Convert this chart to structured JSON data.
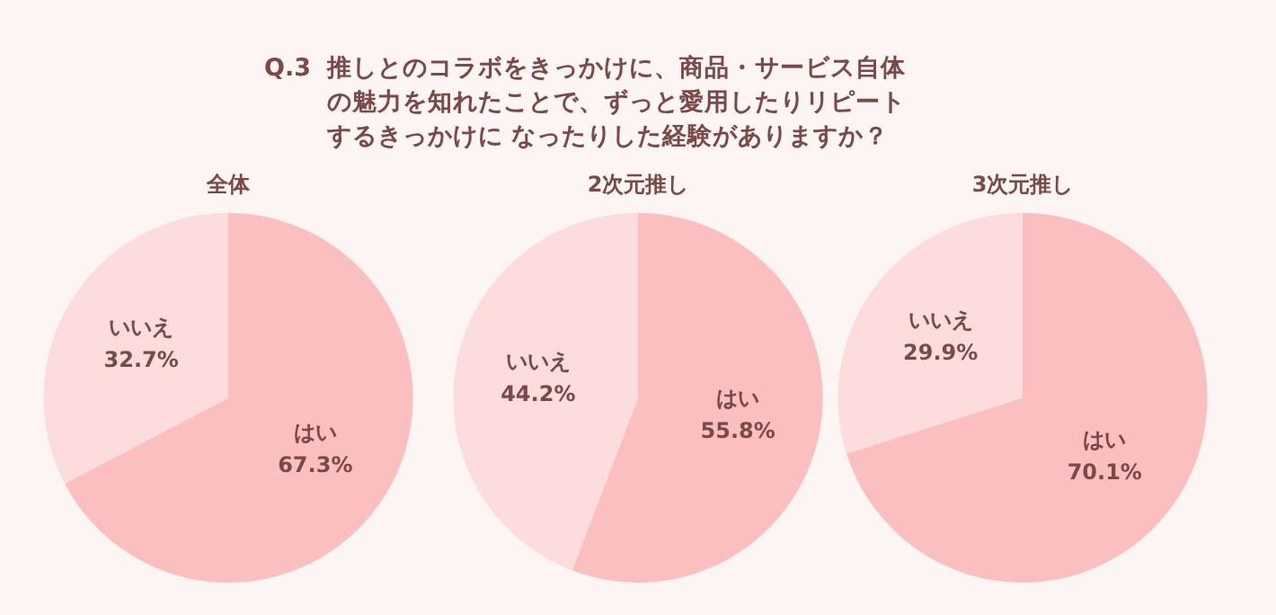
{
  "chart_data": [
    {
      "type": "pie",
      "title": "全体",
      "annotations": [
        "Q.3",
        "推しとのコラボをきっかけに、商品・サービス自体の魅力を知れたことで、ずっと愛用したりリピートするきっかけに なったりした経験がありますか？"
      ],
      "categories": [
        "はい",
        "いいえ"
      ],
      "values": [
        67.3,
        32.7
      ],
      "value_labels": [
        "67.3%",
        "32.7%"
      ],
      "colors": [
        "#fbbfbf",
        "#fcdcdc"
      ],
      "legend": false
    },
    {
      "type": "pie",
      "title": "2次元推し",
      "categories": [
        "はい",
        "いいえ"
      ],
      "values": [
        55.8,
        44.2
      ],
      "value_labels": [
        "55.8%",
        "44.2%"
      ],
      "colors": [
        "#fbbfbf",
        "#fcdcdc"
      ],
      "legend": false
    },
    {
      "type": "pie",
      "title": "3次元推し",
      "categories": [
        "はい",
        "いいえ"
      ],
      "values": [
        70.1,
        29.9
      ],
      "value_labels": [
        "70.1%",
        "29.9%"
      ],
      "colors": [
        "#fbbfbf",
        "#fcdcdc"
      ],
      "legend": false
    }
  ]
}
